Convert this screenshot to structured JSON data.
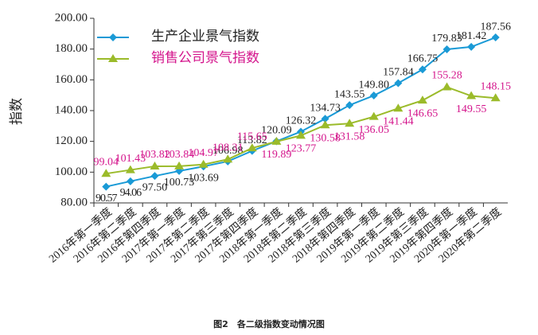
{
  "chart_data": {
    "type": "line",
    "y_label": "指数",
    "caption": "图2　各二级指数变动情况图",
    "categories": [
      "2016年第一季度",
      "2016年第二季度",
      "2016年第四季度",
      "2017年第一季度",
      "2017年第二季度",
      "2017年第三季度",
      "2017年第四季度",
      "2018年第一季度",
      "2018年第二季度",
      "2018年第三季度",
      "2018年第四季度",
      "2019年第一季度",
      "2019年第二季度",
      "2019年第三季度",
      "2019年第四季度",
      "2020年第一季度",
      "2020年第二季度"
    ],
    "series": [
      {
        "name": "生产企业景气指数",
        "color": "#1a9ad6",
        "marker": "diamond",
        "label_color": "#222222",
        "values": [
          90.57,
          94.06,
          97.5,
          100.73,
          103.69,
          106.98,
          113.82,
          120.09,
          126.32,
          134.73,
          143.55,
          149.8,
          157.84,
          166.75,
          179.83,
          181.42,
          187.56
        ],
        "value_labels": [
          "90.57",
          "94.06",
          "97.50",
          "100.73",
          "103.69",
          "106.98",
          "113.82",
          "120.09",
          "126.32",
          "134.73",
          "143.55",
          "149.80",
          "157.84",
          "166.75",
          "179.83",
          "181.42",
          "187.56"
        ]
      },
      {
        "name": "销售公司景气指数",
        "color": "#9bbb2a",
        "marker": "triangle",
        "label_color": "#d4158c",
        "values": [
          99.04,
          101.43,
          103.82,
          103.84,
          104.97,
          108.31,
          115.65,
          119.89,
          123.77,
          130.58,
          131.58,
          136.05,
          141.44,
          146.65,
          155.28,
          149.55,
          148.15
        ],
        "value_labels": [
          "99.04",
          "101.43",
          "103.82",
          "103.84",
          "104.97",
          "108.31",
          "115.65",
          "119.89",
          "123.77",
          "130.58",
          "131.58",
          "136.05",
          "141.44",
          "146.65",
          "155.28",
          "149.55",
          "148.15"
        ]
      }
    ],
    "ylim": [
      80,
      200
    ],
    "yticks": [
      {
        "value": 80,
        "label": "80.00"
      },
      {
        "value": 100,
        "label": "100.00"
      },
      {
        "value": 120,
        "label": "120.00"
      },
      {
        "value": 140,
        "label": "140.00"
      },
      {
        "value": 160,
        "label": "160.00"
      },
      {
        "value": 180,
        "label": "180.00"
      },
      {
        "value": 200,
        "label": "200.00"
      }
    ],
    "legend": "top-left"
  }
}
